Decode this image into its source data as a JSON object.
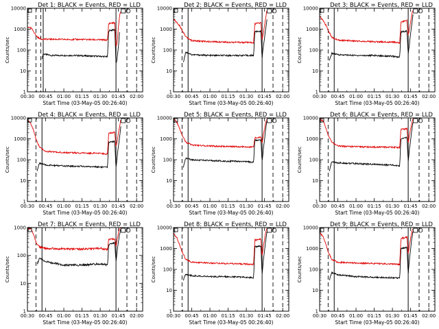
{
  "colors": {
    "events": "#000000",
    "lld": "#e00000",
    "frame": "#000000",
    "background": "#ffffff"
  },
  "chart_data": [
    {
      "type": "line",
      "detector": 1,
      "title": "Det 1: BLACK = Events, RED = LLD",
      "xlabel": "Start Time (03-May-05 00:26:40)",
      "ylabel": "Counts/sec",
      "yscale": "log",
      "ylim": [
        1,
        10000
      ],
      "xlim": [
        "00:30",
        "02:05"
      ],
      "x_ticks": [
        "00:30",
        "00:45",
        "01:00",
        "01:15",
        "01:30",
        "01:45",
        "02:00"
      ],
      "y_ticks": [
        "1",
        "10",
        "100",
        "1000",
        "10000"
      ],
      "dashed_markers": [
        "00:37",
        "00:41",
        "01:52",
        "02:00"
      ],
      "solid_markers": [
        "00:43",
        "01:43"
      ],
      "series": [
        {
          "key": "events",
          "gap": [
            "00:40",
            "00:42"
          ],
          "x": [
            "00:42",
            "00:43",
            "00:46",
            "00:50",
            "01:00",
            "01:10",
            "01:20",
            "01:30",
            "01:36",
            "01:37",
            "01:40",
            "01:42",
            "01:43",
            "01:44",
            "01:45",
            "01:46"
          ],
          "y": [
            40,
            65,
            60,
            55,
            55,
            55,
            52,
            50,
            48,
            850,
            900,
            950,
            20,
            40,
            150,
            800
          ]
        },
        {
          "key": "lld",
          "gap": [],
          "x": [
            "00:30",
            "00:33",
            "00:35",
            "00:37",
            "00:39",
            "00:42",
            "00:50",
            "01:00",
            "01:15",
            "01:30",
            "01:36",
            "01:37",
            "01:42",
            "01:43",
            "01:44",
            "01:45",
            "01:46",
            "01:47"
          ],
          "y": [
            1300,
            1100,
            800,
            500,
            380,
            330,
            330,
            320,
            320,
            310,
            300,
            1900,
            2000,
            130,
            250,
            1200,
            4500,
            8000
          ]
        }
      ]
    },
    {
      "type": "line",
      "detector": 2,
      "title": "Det 2: BLACK = Events, RED = LLD",
      "xlabel": "Start Time (03-May-05 00:26:40)",
      "ylabel": "Counts/sec",
      "yscale": "log",
      "ylim": [
        1,
        10000
      ],
      "xlim": [
        "00:30",
        "02:05"
      ],
      "x_ticks": [
        "00:30",
        "00:45",
        "01:00",
        "01:15",
        "01:30",
        "01:45",
        "02:00"
      ],
      "y_ticks": [
        "1",
        "10",
        "100",
        "1000",
        "10000"
      ],
      "dashed_markers": [
        "00:37",
        "01:52",
        "02:00"
      ],
      "solid_markers": [
        "00:42",
        "01:43"
      ],
      "series": [
        {
          "key": "events",
          "gap": [],
          "x": [
            "00:38",
            "00:40",
            "00:45",
            "01:00",
            "01:15",
            "01:30",
            "01:36",
            "01:37",
            "01:42",
            "01:43",
            "01:44",
            "01:46",
            "01:47"
          ],
          "y": [
            25,
            80,
            60,
            55,
            55,
            55,
            55,
            750,
            800,
            40,
            150,
            1000,
            3000
          ]
        },
        {
          "key": "lld",
          "gap": [],
          "x": [
            "00:30",
            "00:33",
            "00:35",
            "00:37",
            "00:40",
            "00:45",
            "01:00",
            "01:15",
            "01:30",
            "01:36",
            "01:37",
            "01:42",
            "01:43",
            "01:44",
            "01:46",
            "01:47"
          ],
          "y": [
            3000,
            2000,
            1500,
            900,
            450,
            280,
            250,
            240,
            230,
            220,
            1800,
            2000,
            300,
            600,
            3500,
            9000
          ]
        }
      ]
    },
    {
      "type": "line",
      "detector": 3,
      "title": "Det 3: BLACK = Events, RED = LLD",
      "xlabel": "Start Time (03-May-05 00:26:40)",
      "ylabel": "Counts/sec",
      "yscale": "log",
      "ylim": [
        1,
        10000
      ],
      "xlim": [
        "00:30",
        "02:05"
      ],
      "x_ticks": [
        "00:30",
        "00:45",
        "01:00",
        "01:15",
        "01:30",
        "01:45",
        "02:00"
      ],
      "y_ticks": [
        "1",
        "10",
        "100",
        "1000",
        "10000"
      ],
      "dashed_markers": [
        "00:37",
        "01:52",
        "02:00"
      ],
      "solid_markers": [
        "00:42",
        "01:43"
      ],
      "series": [
        {
          "key": "events",
          "gap": [],
          "x": [
            "00:38",
            "00:40",
            "00:45",
            "01:00",
            "01:15",
            "01:30",
            "01:36",
            "01:37",
            "01:42",
            "01:43",
            "01:44",
            "01:46",
            "01:47"
          ],
          "y": [
            30,
            70,
            60,
            55,
            55,
            50,
            45,
            750,
            800,
            60,
            200,
            1800,
            5000
          ]
        },
        {
          "key": "lld",
          "gap": [],
          "x": [
            "00:30",
            "00:33",
            "00:35",
            "00:37",
            "00:40",
            "00:45",
            "01:00",
            "01:15",
            "01:30",
            "01:36",
            "01:37",
            "01:42",
            "01:43",
            "01:44",
            "01:46",
            "01:47"
          ],
          "y": [
            4000,
            2500,
            1600,
            900,
            400,
            300,
            270,
            250,
            240,
            220,
            2200,
            2500,
            500,
            1000,
            5000,
            9000
          ]
        }
      ]
    },
    {
      "type": "line",
      "detector": 4,
      "title": "Det 4: BLACK = Events, RED = LLD",
      "xlabel": "Start Time (03-May-05 00:26:40)",
      "ylabel": "Counts/sec",
      "yscale": "log",
      "ylim": [
        1,
        10000
      ],
      "xlim": [
        "00:30",
        "02:05"
      ],
      "x_ticks": [
        "00:30",
        "00:45",
        "01:00",
        "01:15",
        "01:30",
        "01:45",
        "02:00"
      ],
      "y_ticks": [
        "1",
        "10",
        "100",
        "1000",
        "10000"
      ],
      "dashed_markers": [
        "00:37",
        "01:52",
        "02:00"
      ],
      "solid_markers": [
        "00:42",
        "01:43"
      ],
      "series": [
        {
          "key": "events",
          "gap": [],
          "x": [
            "00:38",
            "00:40",
            "00:45",
            "01:00",
            "01:15",
            "01:30",
            "01:36",
            "01:37",
            "01:42",
            "01:43",
            "01:44",
            "01:46",
            "01:47"
          ],
          "y": [
            30,
            70,
            55,
            50,
            48,
            45,
            43,
            700,
            750,
            40,
            150,
            1200,
            4000
          ]
        },
        {
          "key": "lld",
          "gap": [],
          "x": [
            "00:30",
            "00:33",
            "00:35",
            "00:37",
            "00:40",
            "00:45",
            "01:00",
            "01:15",
            "01:30",
            "01:36",
            "01:37",
            "01:42",
            "01:43",
            "01:44",
            "01:46",
            "01:47"
          ],
          "y": [
            8000,
            5000,
            2500,
            1000,
            400,
            250,
            220,
            210,
            200,
            190,
            1800,
            2000,
            400,
            800,
            4000,
            9000
          ]
        }
      ]
    },
    {
      "type": "line",
      "detector": 5,
      "title": "Det 5: BLACK = Events, RED = LLD",
      "xlabel": "Start Time (03-May-05 00:26:40)",
      "ylabel": "Counts/sec",
      "yscale": "log",
      "ylim": [
        1,
        10000
      ],
      "xlim": [
        "00:30",
        "02:05"
      ],
      "x_ticks": [
        "00:30",
        "00:45",
        "01:00",
        "01:15",
        "01:30",
        "01:45",
        "02:00"
      ],
      "y_ticks": [
        "1",
        "10",
        "100",
        "1000",
        "10000"
      ],
      "dashed_markers": [
        "00:37",
        "01:52",
        "02:00"
      ],
      "solid_markers": [
        "00:42",
        "01:43"
      ],
      "series": [
        {
          "key": "events",
          "gap": [],
          "x": [
            "00:38",
            "00:40",
            "00:45",
            "01:00",
            "01:15",
            "01:30",
            "01:36",
            "01:37",
            "01:42",
            "01:43",
            "01:44",
            "01:46",
            "01:47"
          ],
          "y": [
            40,
            120,
            100,
            90,
            85,
            80,
            75,
            850,
            900,
            80,
            300,
            3000,
            7000
          ]
        },
        {
          "key": "lld",
          "gap": [],
          "x": [
            "00:30",
            "00:33",
            "00:35",
            "00:37",
            "00:40",
            "00:45",
            "01:00",
            "01:15",
            "01:30",
            "01:36",
            "01:37",
            "01:42",
            "01:43",
            "01:44",
            "01:46",
            "01:47"
          ],
          "y": [
            9000,
            6000,
            3000,
            1500,
            700,
            500,
            450,
            430,
            410,
            400,
            1100,
            1200,
            600,
            1500,
            6000,
            9500
          ]
        }
      ]
    },
    {
      "type": "line",
      "detector": 6,
      "title": "Det 6: BLACK = Events, RED = LLD",
      "xlabel": "Start Time (03-May-05 00:26:40)",
      "ylabel": "Counts/sec",
      "yscale": "log",
      "ylim": [
        1,
        10000
      ],
      "xlim": [
        "00:30",
        "02:05"
      ],
      "x_ticks": [
        "00:30",
        "00:45",
        "01:00",
        "01:15",
        "01:30",
        "01:45",
        "02:00"
      ],
      "y_ticks": [
        "1",
        "10",
        "100",
        "1000",
        "10000"
      ],
      "dashed_markers": [
        "00:37",
        "01:52",
        "02:00"
      ],
      "solid_markers": [
        "00:42",
        "01:43"
      ],
      "series": [
        {
          "key": "events",
          "gap": [],
          "x": [
            "00:38",
            "00:40",
            "00:45",
            "01:00",
            "01:15",
            "01:30",
            "01:36",
            "01:37",
            "01:42",
            "01:43",
            "01:44",
            "01:46",
            "01:47"
          ],
          "y": [
            30,
            80,
            70,
            65,
            60,
            55,
            50,
            1000,
            1200,
            80,
            300,
            2500,
            6000
          ]
        },
        {
          "key": "lld",
          "gap": [],
          "x": [
            "00:30",
            "00:33",
            "00:35",
            "00:37",
            "00:40",
            "00:45",
            "01:00",
            "01:15",
            "01:30",
            "01:36",
            "01:37",
            "01:42",
            "01:43",
            "01:44",
            "01:46",
            "01:47"
          ],
          "y": [
            9000,
            7000,
            3500,
            1500,
            700,
            450,
            420,
            400,
            400,
            380,
            2800,
            3000,
            600,
            1500,
            6000,
            9500
          ]
        }
      ]
    },
    {
      "type": "line",
      "detector": 7,
      "title": "Det 7: BLACK = Events, RED = LLD",
      "xlabel": "Start Time (03-May-05 00:26:40)",
      "ylabel": "Counts/sec",
      "yscale": "log",
      "ylim": [
        1,
        1000
      ],
      "xlim": [
        "00:30",
        "02:05"
      ],
      "x_ticks": [
        "00:30",
        "00:45",
        "01:00",
        "01:15",
        "01:30",
        "01:45",
        "02:00"
      ],
      "y_ticks": [
        "1",
        "10",
        "100",
        "1000"
      ],
      "dashed_markers": [
        "00:37",
        "01:52",
        "02:00"
      ],
      "solid_markers": [
        "00:42",
        "01:43"
      ],
      "series": [
        {
          "key": "events",
          "gap": [],
          "x": [
            "00:38",
            "00:40",
            "00:45",
            "01:00",
            "01:15",
            "01:30",
            "01:36",
            "01:37",
            "01:42",
            "01:43",
            "01:44",
            "01:46",
            "01:47"
          ],
          "y": [
            50,
            80,
            60,
            45,
            45,
            50,
            45,
            250,
            280,
            60,
            150,
            600,
            900
          ]
        },
        {
          "key": "lld",
          "gap": [],
          "x": [
            "00:30",
            "00:33",
            "00:35",
            "00:37",
            "00:40",
            "00:45",
            "01:00",
            "01:15",
            "01:30",
            "01:36",
            "01:37",
            "01:42",
            "01:43",
            "01:44",
            "01:46",
            "01:47"
          ],
          "y": [
            1000,
            900,
            600,
            300,
            200,
            180,
            170,
            170,
            180,
            160,
            380,
            400,
            200,
            400,
            900,
            1000
          ]
        }
      ]
    },
    {
      "type": "line",
      "detector": 8,
      "title": "Det 8: BLACK = Events, RED = LLD",
      "xlabel": "Start Time (03-May-05 00:26:40)",
      "ylabel": "Counts/sec",
      "yscale": "log",
      "ylim": [
        1,
        10000
      ],
      "xlim": [
        "00:30",
        "02:05"
      ],
      "x_ticks": [
        "00:30",
        "00:45",
        "01:00",
        "01:15",
        "01:30",
        "01:45",
        "02:00"
      ],
      "y_ticks": [
        "1",
        "10",
        "100",
        "1000",
        "10000"
      ],
      "dashed_markers": [
        "00:37",
        "01:52",
        "02:00"
      ],
      "solid_markers": [
        "00:42",
        "01:43"
      ],
      "series": [
        {
          "key": "events",
          "gap": [],
          "x": [
            "00:38",
            "00:40",
            "00:45",
            "01:00",
            "01:15",
            "01:30",
            "01:36",
            "01:37",
            "01:42",
            "01:43",
            "01:44",
            "01:46",
            "01:47"
          ],
          "y": [
            30,
            60,
            50,
            45,
            45,
            42,
            40,
            1200,
            1300,
            60,
            250,
            2500,
            6000
          ]
        },
        {
          "key": "lld",
          "gap": [],
          "x": [
            "00:30",
            "00:33",
            "00:35",
            "00:37",
            "00:40",
            "00:45",
            "01:00",
            "01:15",
            "01:30",
            "01:36",
            "01:37",
            "01:42",
            "01:43",
            "01:44",
            "01:46",
            "01:47"
          ],
          "y": [
            5000,
            3000,
            1500,
            700,
            300,
            220,
            200,
            190,
            180,
            170,
            2500,
            2800,
            400,
            1200,
            6000,
            9500
          ]
        }
      ]
    },
    {
      "type": "line",
      "detector": 9,
      "title": "Det 9: BLACK = Events, RED = LLD",
      "xlabel": "Start Time (03-May-05 00:26:40)",
      "ylabel": "Counts/sec",
      "yscale": "log",
      "ylim": [
        1,
        10000
      ],
      "xlim": [
        "00:30",
        "02:05"
      ],
      "x_ticks": [
        "00:30",
        "00:45",
        "01:00",
        "01:15",
        "01:30",
        "01:45",
        "02:00"
      ],
      "y_ticks": [
        "1",
        "10",
        "100",
        "1000",
        "10000"
      ],
      "dashed_markers": [
        "00:37",
        "01:52",
        "02:00"
      ],
      "solid_markers": [
        "00:42",
        "01:43"
      ],
      "series": [
        {
          "key": "events",
          "gap": [],
          "x": [
            "00:38",
            "00:40",
            "00:45",
            "01:00",
            "01:15",
            "01:30",
            "01:36",
            "01:37",
            "01:42",
            "01:43",
            "01:44",
            "01:46",
            "01:47"
          ],
          "y": [
            30,
            70,
            55,
            45,
            42,
            40,
            38,
            1000,
            1100,
            60,
            300,
            3000,
            7000
          ]
        },
        {
          "key": "lld",
          "gap": [],
          "x": [
            "00:30",
            "00:33",
            "00:35",
            "00:37",
            "00:40",
            "00:45",
            "01:00",
            "01:15",
            "01:30",
            "01:36",
            "01:37",
            "01:42",
            "01:43",
            "01:44",
            "01:46",
            "01:47"
          ],
          "y": [
            6000,
            3500,
            1800,
            700,
            300,
            220,
            200,
            190,
            180,
            170,
            3000,
            3500,
            500,
            1500,
            6500,
            9500
          ]
        }
      ]
    }
  ]
}
